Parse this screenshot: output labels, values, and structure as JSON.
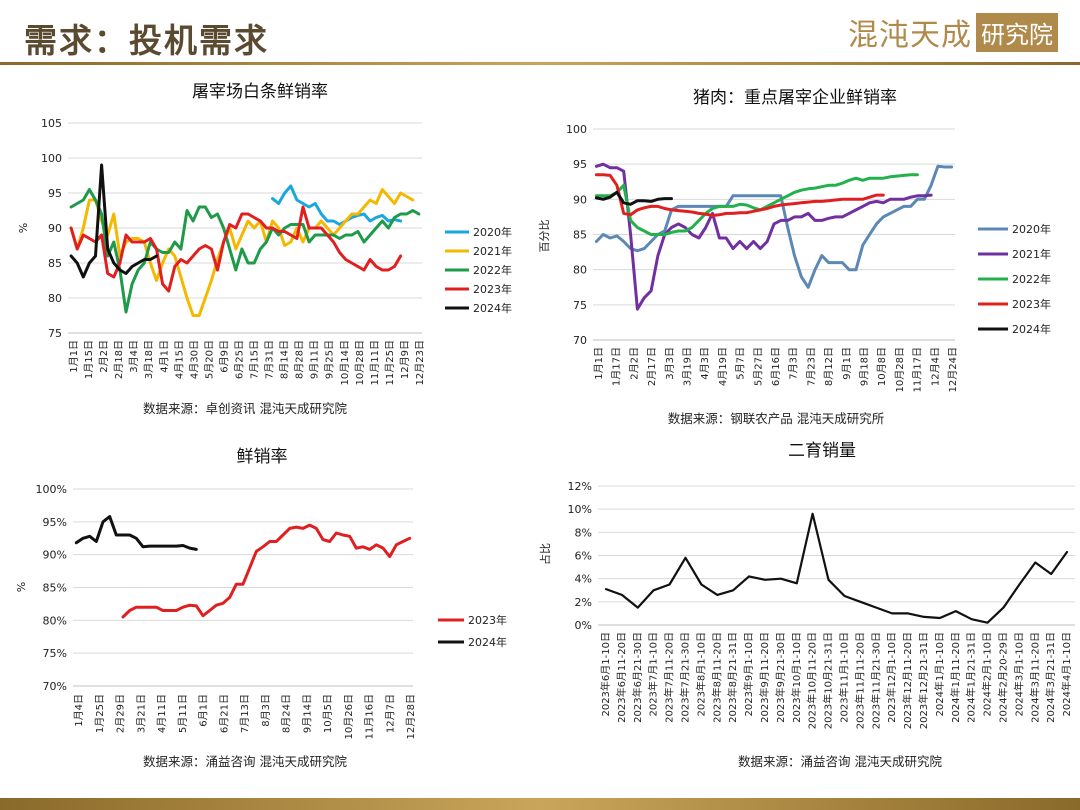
{
  "header": {
    "title": "需求：投机需求",
    "logo_text": "混沌天成",
    "logo_box": "研究院"
  },
  "colors": {
    "y2020_tl": "#1aa7e0",
    "y2021_tl": "#f5b800",
    "y2022_tl": "#1e9a4a",
    "y2023_tl": "#e02020",
    "y2024_tl": "#111111",
    "y2020_tr": "#5b88b5",
    "y2021_tr": "#7030a0",
    "y2022_tr": "#22b14c",
    "y2023_tr": "#e02020",
    "y2024_tr": "#111111"
  },
  "chart_data": [
    {
      "id": "tl",
      "type": "line",
      "title": "屠宰场白条鲜销率",
      "ylabel": "%",
      "ylim": [
        75,
        105
      ],
      "yticks": [
        "75",
        "80",
        "85",
        "90",
        "95",
        "100",
        "105"
      ],
      "xlabels": [
        "1月1日",
        "1月15日",
        "2月2日",
        "2月18日",
        "3月4日",
        "3月18日",
        "4月1日",
        "4月15日",
        "4月30日",
        "5月20日",
        "6月9日",
        "6月25日",
        "7月15日",
        "7月31日",
        "8月14日",
        "8月28日",
        "9月11日",
        "9月25日",
        "10月14日",
        "10月28日",
        "11月11日",
        "11月25日",
        "12月9日",
        "12月23日"
      ],
      "source": "数据来源：卓创资讯 混沌天成研究院",
      "legend_placement": "right",
      "series": [
        {
          "name": "2020年",
          "color_key": "y2020_tl",
          "start": 33,
          "values": [
            94.2,
            93.5,
            95,
            96,
            94,
            93.5,
            93,
            93.5,
            92,
            91,
            91,
            90.5,
            91,
            91.5,
            91.8,
            92,
            91,
            91.5,
            91.8,
            91,
            91.2,
            91
          ]
        },
        {
          "name": "2021年",
          "color_key": "y2021_tl",
          "start": 0,
          "values": [
            90,
            87,
            90,
            94,
            94,
            91,
            89,
            92,
            86,
            88,
            88.5,
            88.5,
            88,
            85,
            82.5,
            85,
            87,
            86,
            83,
            80,
            77.5,
            77.5,
            80,
            82.5,
            85.5,
            88,
            90,
            87,
            89,
            91,
            90,
            91,
            88,
            91,
            90,
            87.5,
            88,
            90,
            88,
            90,
            90,
            91,
            90,
            89,
            90,
            91,
            92,
            92,
            93,
            94,
            93.5,
            95.5,
            94.5,
            93.5,
            95,
            94.5,
            94
          ]
        },
        {
          "name": "2022年",
          "color_key": "y2022_tl",
          "start": 0,
          "values": [
            93,
            93.5,
            94,
            95.5,
            94,
            92,
            86,
            88,
            84,
            78,
            82,
            84,
            85,
            88,
            87,
            86.5,
            86.5,
            88,
            87,
            92.5,
            91,
            93,
            93,
            91.5,
            92,
            90,
            87,
            84,
            87,
            85,
            85,
            87,
            88,
            90,
            89,
            90,
            90.5,
            90.5,
            90.5,
            88,
            89,
            89,
            89,
            89,
            88.5,
            89,
            89,
            89.5,
            88,
            89,
            90,
            91,
            90,
            91.5,
            92,
            92,
            92.5,
            92
          ]
        },
        {
          "name": "2023年",
          "color_key": "y2023_tl",
          "start": 0,
          "values": [
            90,
            87,
            89,
            88.5,
            88,
            89,
            83.5,
            83,
            85,
            89,
            88,
            88,
            88,
            88.5,
            87,
            82,
            81,
            84.5,
            85.5,
            85,
            86,
            87,
            87.5,
            87,
            84,
            88,
            90.5,
            90,
            92,
            92,
            91.5,
            91,
            90,
            90,
            89.5,
            89.5,
            89,
            88.5,
            93,
            90,
            90,
            90,
            89,
            88,
            86.5,
            85.5,
            85,
            84.5,
            84,
            85.5,
            84.5,
            84,
            84,
            84.5,
            86
          ]
        },
        {
          "name": "2024年",
          "color_key": "y2024_tl",
          "start": 0,
          "values": [
            86,
            85,
            83,
            85,
            86,
            99,
            87,
            85,
            84,
            83.5,
            84.5,
            85,
            85.5,
            85.5,
            86
          ]
        }
      ]
    },
    {
      "id": "tr",
      "type": "line",
      "title": "猪肉：重点屠宰企业鲜销率",
      "ylabel": "百分比",
      "ylim": [
        70,
        100
      ],
      "yticks": [
        "70",
        "75",
        "80",
        "85",
        "90",
        "95",
        "100"
      ],
      "xlabels": [
        "1月1日",
        "1月17日",
        "2月2日",
        "2月17日",
        "3月3日",
        "3月19日",
        "4月3日",
        "4月19日",
        "5月7日",
        "5月27日",
        "6月16日",
        "7月3日",
        "7月23日",
        "8月12日",
        "9月1日",
        "9月18日",
        "10月8日",
        "10月28日",
        "11月17日",
        "12月4日",
        "12月24日"
      ],
      "source": "数据来源：钢联农产品 混沌天成研究所",
      "legend_placement": "right",
      "series": [
        {
          "name": "2020年",
          "color_key": "y2020_tr",
          "start": 0,
          "values": [
            84,
            85,
            84.5,
            84.8,
            84,
            83,
            82.7,
            83,
            84,
            85,
            85.5,
            88.5,
            89,
            89,
            89,
            89,
            89,
            89,
            89,
            89,
            90.5,
            90.5,
            90.5,
            90.5,
            90.5,
            90.5,
            90.5,
            90.5,
            86,
            82,
            79,
            77.5,
            80,
            82,
            81,
            81,
            81,
            80,
            80,
            83.5,
            85,
            86.5,
            87.5,
            88,
            88.5,
            89,
            89,
            90,
            90,
            92,
            94.7,
            94.6,
            94.6
          ]
        },
        {
          "name": "2021年",
          "color_key": "y2021_tr",
          "start": 0,
          "values": [
            94.7,
            95,
            94.5,
            94.5,
            94,
            85,
            74.4,
            76,
            77,
            82,
            85,
            86,
            86.5,
            86,
            85,
            84.5,
            86,
            88,
            84.5,
            84.5,
            83,
            84,
            83,
            84,
            83,
            84,
            86.5,
            87,
            87,
            87.5,
            87.5,
            88,
            87,
            87,
            87.3,
            87.5,
            87.5,
            88,
            88.5,
            89,
            89.5,
            89.7,
            89.5,
            90,
            90,
            90,
            90.3,
            90.5,
            90.5,
            90.6
          ]
        },
        {
          "name": "2022年",
          "color_key": "y2022_tr",
          "start": 0,
          "values": [
            90.5,
            90.5,
            90.5,
            91,
            92,
            87,
            86,
            85.5,
            85,
            85,
            85,
            85.3,
            85.5,
            85.5,
            86,
            87,
            88,
            88.7,
            89,
            89,
            89,
            89.3,
            89.2,
            88.8,
            88.5,
            89,
            89.5,
            90,
            90.5,
            91,
            91.3,
            91.5,
            91.6,
            91.8,
            92,
            92,
            92.3,
            92.7,
            93,
            92.7,
            93,
            93,
            93,
            93.2,
            93.3,
            93.4,
            93.5,
            93.5
          ]
        },
        {
          "name": "2023年",
          "color_key": "y2023_tr",
          "start": 0,
          "values": [
            93.5,
            93.5,
            93.4,
            92,
            88,
            87.8,
            88.5,
            88.8,
            89,
            89,
            88.7,
            88.5,
            88.4,
            88.3,
            88.2,
            88,
            87.9,
            87.7,
            87.8,
            88,
            88,
            88.1,
            88.1,
            88.3,
            88.5,
            88.7,
            89,
            89.2,
            89.3,
            89.4,
            89.5,
            89.6,
            89.7,
            89.7,
            89.8,
            89.9,
            90,
            90,
            90,
            90,
            90.3,
            90.6,
            90.6
          ]
        },
        {
          "name": "2024年",
          "color_key": "y2024_tr",
          "start": 0,
          "values": [
            90.2,
            90,
            90.3,
            91,
            89.5,
            89.3,
            89.8,
            89.8,
            89.7,
            90,
            90.1,
            90.1
          ]
        }
      ]
    },
    {
      "id": "bl",
      "type": "line",
      "title": "鲜销率",
      "ylabel": "%",
      "ylim": [
        70,
        100
      ],
      "yticks": [
        "70%",
        "75%",
        "80%",
        "85%",
        "90%",
        "95%",
        "100%"
      ],
      "xlabels": [
        "1月4日",
        "1月25日",
        "2月29日",
        "3月21日",
        "4月11日",
        "5月11日",
        "6月1日",
        "6月21日",
        "7月13日",
        "8月3日",
        "8月24日",
        "9月14日",
        "10月5日",
        "10月26日",
        "11月16日",
        "12月7日",
        "12月28日"
      ],
      "source": "数据来源：涌益咨询 混沌天成研究院",
      "legend_placement": "right",
      "series": [
        {
          "name": "2023年",
          "color_key": "y2023_tl",
          "start": 7,
          "values": [
            80.5,
            81.5,
            82,
            82,
            82,
            82,
            81.5,
            81.5,
            81.5,
            82,
            82.3,
            82.2,
            80.7,
            81.5,
            82.3,
            82.6,
            83.5,
            85.5,
            85.5,
            88,
            90.5,
            91.2,
            92,
            92,
            93,
            94,
            94.2,
            94,
            94.5,
            94,
            92.3,
            92,
            93.3,
            93,
            92.8,
            91,
            91.2,
            90.8,
            91.5,
            91,
            89.7,
            91.5,
            92,
            92.5
          ]
        },
        {
          "name": "2024年",
          "color_key": "y2024_tl",
          "start": 0,
          "values": [
            91.8,
            92.5,
            92.8,
            92,
            95,
            95.8,
            93,
            93,
            93,
            92.5,
            91.2,
            91.3,
            91.3,
            91.3,
            91.3,
            91.3,
            91.4,
            91,
            90.8
          ]
        }
      ]
    },
    {
      "id": "br",
      "type": "line",
      "title": "二育销量",
      "ylabel": "占比",
      "ylim": [
        0,
        12
      ],
      "yticks": [
        "0%",
        "2%",
        "4%",
        "6%",
        "8%",
        "10%",
        "12%"
      ],
      "xlabels": [
        "2023年6月1-10日",
        "2023年6月11-20日",
        "2023年6月21-30日",
        "2023年7月1-10日",
        "2023年7月11-20日",
        "2023年7月21-30日",
        "2023年8月1-10日",
        "2023年8月11-20日",
        "2023年8月21-31日",
        "2023年9月1-10日",
        "2023年9月11-20日",
        "2023年9月21-30日",
        "2023年10月1-10日",
        "2023年10月11-20日",
        "2023年10月21-31日",
        "2023年11月1-10日",
        "2023年11月11-20日",
        "2023年11月21-30日",
        "2023年12月1-10日",
        "2023年12月11-20日",
        "2023年12月21-31日",
        "2024年1月1-10日",
        "2024年1月11-20日",
        "2024年1月21-31日",
        "2024年2月1-10日",
        "2024年2月20-29日",
        "2024年3月1-10日",
        "2024年3月11-20日",
        "2024年3月21-31日",
        "2024年4月1-10日"
      ],
      "source": "数据来源：涌益咨询 混沌天成研究院",
      "series": [
        {
          "name": "",
          "color_key": "y2024_tl",
          "start": 0,
          "values": [
            3.1,
            2.6,
            1.5,
            3.0,
            3.5,
            5.8,
            3.5,
            2.6,
            3.0,
            4.2,
            3.9,
            4.0,
            3.6,
            9.6,
            3.9,
            2.5,
            2.0,
            1.5,
            1.0,
            1.0,
            0.7,
            0.6,
            1.2,
            0.5,
            0.2,
            1.5,
            3.5,
            5.4,
            4.4,
            6.3
          ]
        }
      ]
    }
  ]
}
